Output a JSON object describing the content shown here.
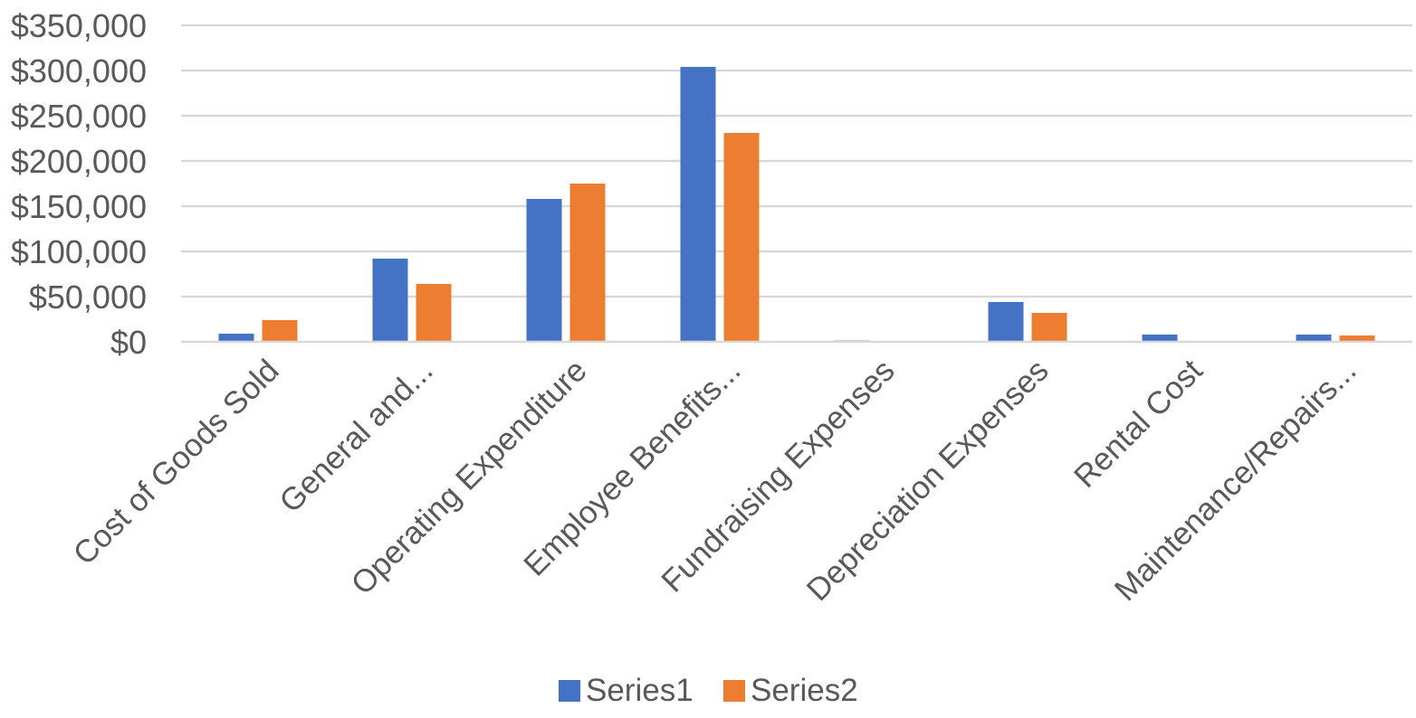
{
  "chart_data": {
    "type": "bar",
    "title": "",
    "xlabel": "",
    "ylabel": "",
    "categories": [
      "Cost of Goods Sold",
      "General and...",
      "Operating Expenditure",
      "Employee Benefits...",
      "Fundraising Expenses",
      "Depreciation Expenses",
      "Rental Cost",
      "Maintenance/Repairs..."
    ],
    "series": [
      {
        "name": "Series1",
        "color": "#4472c4",
        "values": [
          9000,
          92000,
          158000,
          304000,
          1500,
          44000,
          8000,
          8000
        ]
      },
      {
        "name": "Series2",
        "color": "#ed7d31",
        "values": [
          24000,
          64000,
          175000,
          231000,
          0,
          32000,
          0,
          7000
        ]
      }
    ],
    "ylim": [
      0,
      350000
    ],
    "yticks": [
      0,
      50000,
      100000,
      150000,
      200000,
      250000,
      300000,
      350000
    ],
    "ytick_labels": [
      "$0",
      "$50,000",
      "$100,000",
      "$150,000",
      "$200,000",
      "$250,000",
      "$300,000",
      "$350,000"
    ],
    "grid": true,
    "legend_position": "bottom"
  }
}
